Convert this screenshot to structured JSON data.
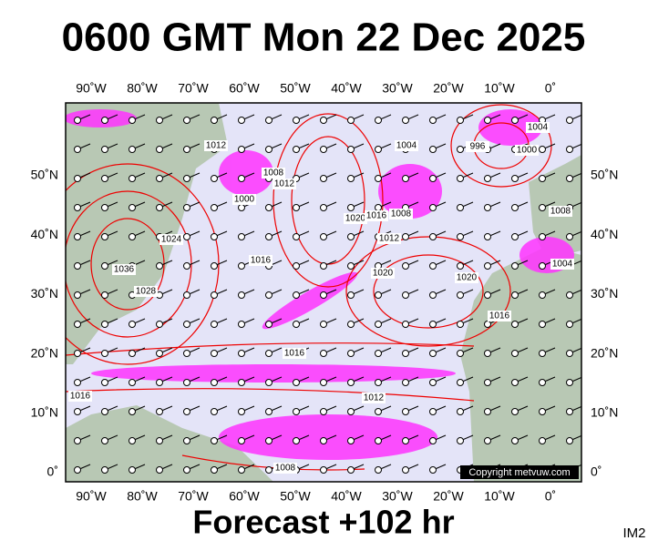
{
  "title": "0600 GMT Mon 22 Dec 2025",
  "footer": "Forecast +102 hr",
  "image_id": "IM2",
  "copyright": "Copyright metvuw.com",
  "longitude_labels": [
    "90˚W",
    "80˚W",
    "70˚W",
    "60˚W",
    "50˚W",
    "40˚W",
    "30˚W",
    "20˚W",
    "10˚W",
    "0˚"
  ],
  "latitude_labels": [
    "50˚N",
    "40˚N",
    "30˚N",
    "20˚N",
    "10˚N",
    "0˚"
  ],
  "isobar_labels": [
    "1012",
    "1008",
    "1012",
    "1000",
    "1004",
    "996",
    "1000",
    "1004",
    "1020",
    "1016",
    "1008",
    "1012",
    "1016",
    "1036",
    "1028",
    "1024",
    "1020",
    "1020",
    "1016",
    "1008",
    "1004",
    "1016",
    "1012",
    "1016",
    "1008"
  ]
}
